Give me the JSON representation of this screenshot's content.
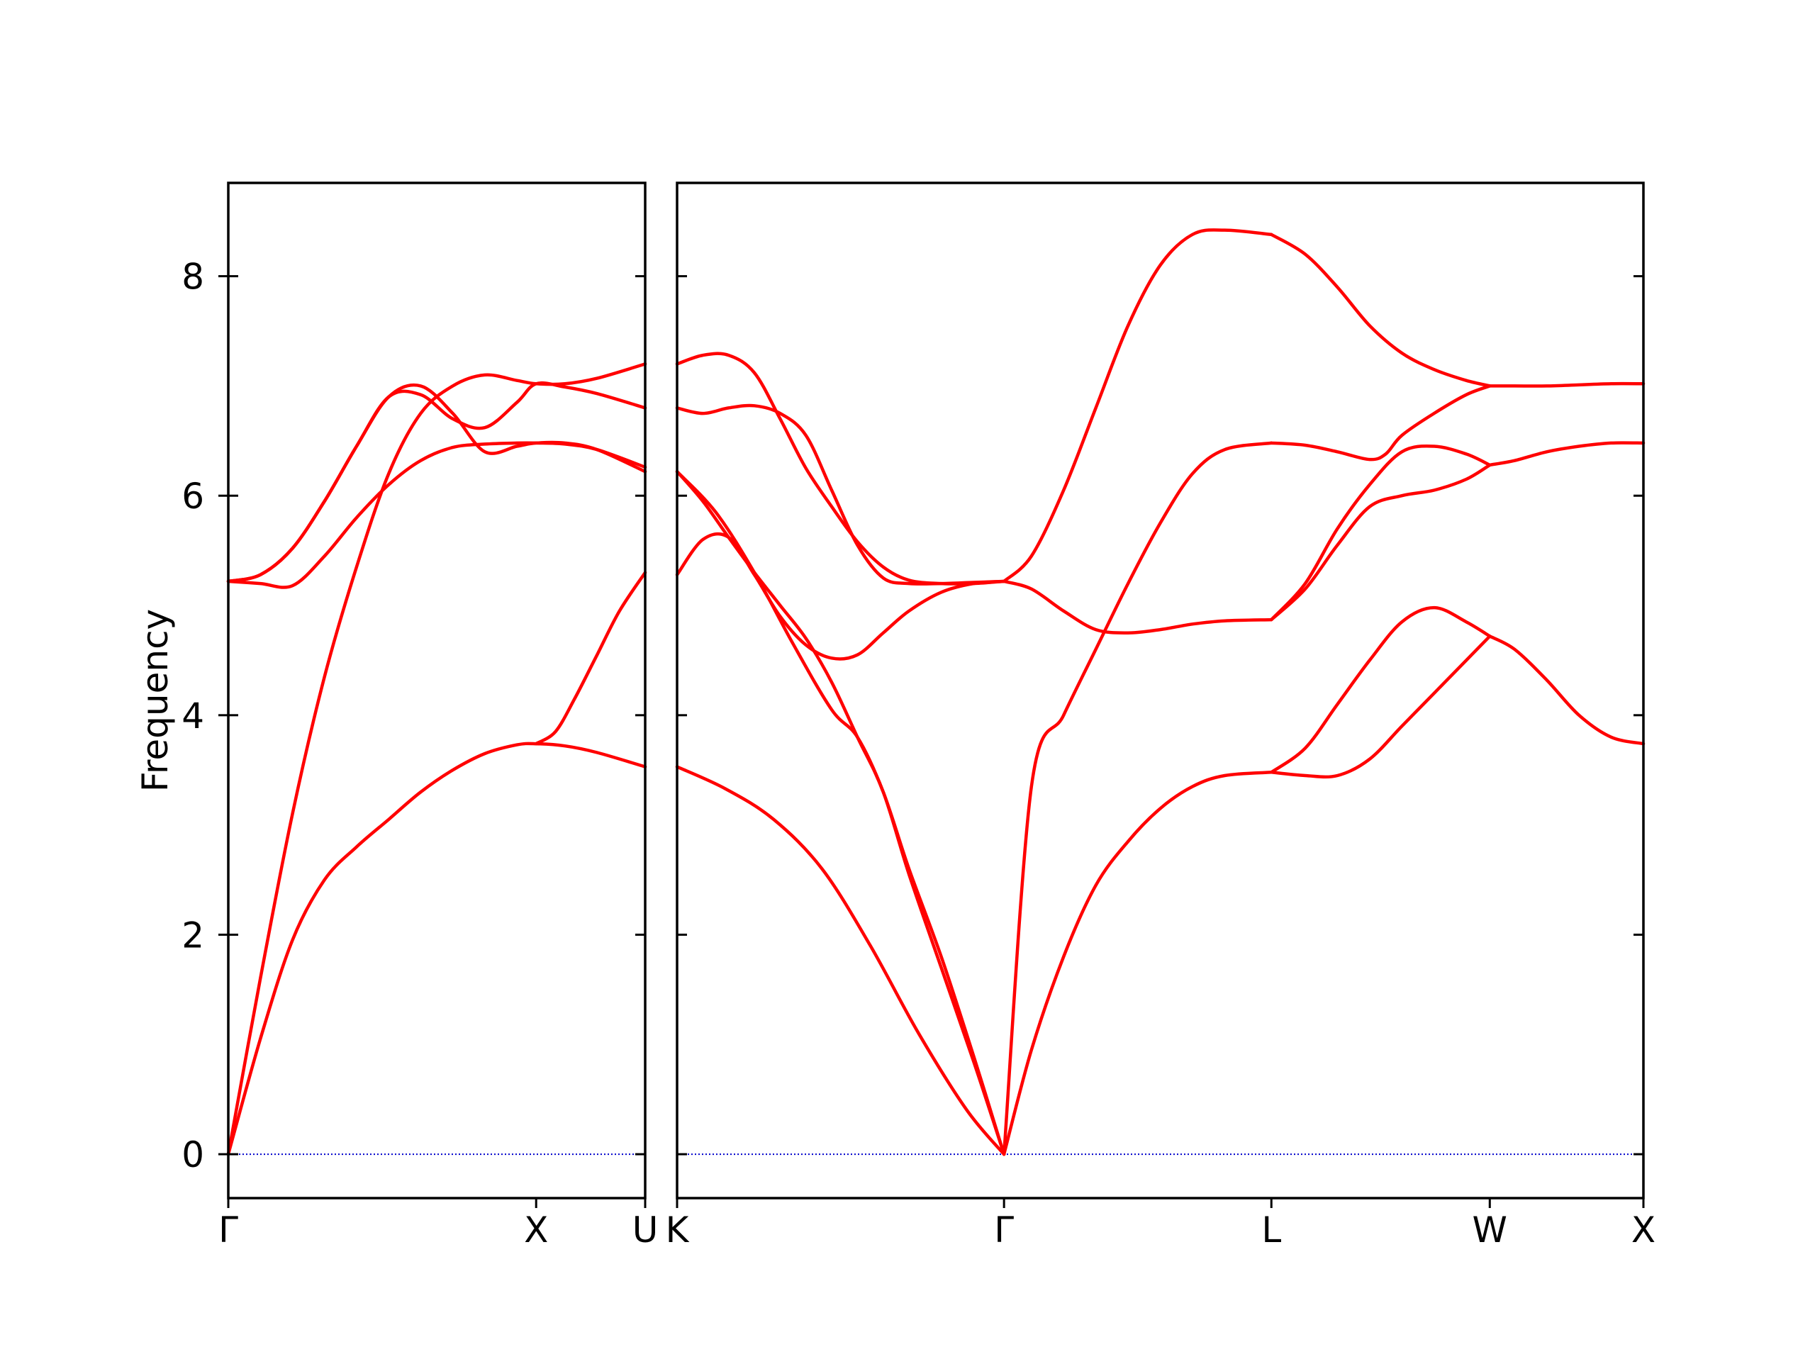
{
  "chart_data": {
    "type": "line",
    "ylabel": "Frequency",
    "ylim": [
      -0.4,
      8.85
    ],
    "yticks": [
      0,
      2,
      4,
      6,
      8
    ],
    "line_color": "#ff0000",
    "zero_line_color": "#0000cc",
    "panels": [
      {
        "xlim": [
          0,
          1.3
        ],
        "ticks": [
          {
            "x": 0,
            "label": "Γ"
          },
          {
            "x": 0.96,
            "label": "X"
          },
          {
            "x": 1.3,
            "label": "U"
          }
        ],
        "series": [
          {
            "x": [
              0,
              0.1,
              0.2,
              0.3,
              0.4,
              0.5,
              0.6,
              0.7,
              0.8,
              0.9,
              0.96,
              1.05,
              1.15,
              1.3
            ],
            "y": [
              0,
              1.05,
              1.95,
              2.5,
              2.8,
              3.05,
              3.3,
              3.5,
              3.65,
              3.73,
              3.74,
              3.72,
              3.66,
              3.53
            ]
          },
          {
            "x": [
              0,
              0.1,
              0.2,
              0.3,
              0.4,
              0.5,
              0.6,
              0.7,
              0.8,
              0.9,
              0.96,
              1.05,
              1.15,
              1.3
            ],
            "y": [
              0,
              1.6,
              3.1,
              4.35,
              5.35,
              6.2,
              6.75,
              7.0,
              7.1,
              7.05,
              7.02,
              7.02,
              7.07,
              7.2
            ]
          },
          {
            "x": [
              0,
              0.1,
              0.2,
              0.3,
              0.4,
              0.5,
              0.6,
              0.7,
              0.8,
              0.9,
              0.96,
              1.05,
              1.15,
              1.3
            ],
            "y": [
              5.22,
              5.2,
              5.18,
              5.45,
              5.8,
              6.1,
              6.32,
              6.44,
              6.47,
              6.48,
              6.48,
              6.47,
              6.42,
              6.26
            ]
          },
          {
            "x": [
              0,
              0.1,
              0.2,
              0.3,
              0.4,
              0.5,
              0.6,
              0.7,
              0.8,
              0.9,
              0.96,
              1.05,
              1.15,
              1.3
            ],
            "y": [
              5.22,
              5.28,
              5.52,
              5.95,
              6.45,
              6.9,
              6.92,
              6.7,
              6.62,
              6.85,
              7.02,
              6.99,
              6.93,
              6.8
            ]
          },
          {
            "x": [
              0,
              0.1,
              0.2,
              0.3,
              0.4,
              0.5,
              0.6,
              0.7,
              0.8,
              0.9,
              0.96,
              1.05,
              1.15,
              1.3
            ],
            "y": [
              5.22,
              5.28,
              5.52,
              5.95,
              6.45,
              6.9,
              7.0,
              6.75,
              6.4,
              6.45,
              6.48,
              6.48,
              6.42,
              6.22
            ]
          },
          {
            "x": [
              0.96,
              1.02,
              1.08,
              1.15,
              1.22,
              1.3
            ],
            "y": [
              3.74,
              3.85,
              4.15,
              4.55,
              4.95,
              5.3
            ]
          }
        ]
      },
      {
        "xlim": [
          0,
          3.0
        ],
        "ticks": [
          {
            "x": 0,
            "label": "K"
          },
          {
            "x": 1.015,
            "label": "Γ"
          },
          {
            "x": 1.845,
            "label": "L"
          },
          {
            "x": 2.523,
            "label": "W"
          },
          {
            "x": 3.0,
            "label": "X"
          }
        ],
        "series": [
          {
            "x": [
              0,
              0.15,
              0.3,
              0.45,
              0.6,
              0.75,
              0.9,
              1.015
            ],
            "y": [
              3.53,
              3.33,
              3.05,
              2.6,
              1.9,
              1.1,
              0.4,
              0
            ]
          },
          {
            "x": [
              0,
              0.12,
              0.24,
              0.36,
              0.48,
              0.56,
              0.64,
              0.72,
              0.82,
              0.92,
              1.015
            ],
            "y": [
              6.22,
              5.85,
              5.3,
              4.65,
              4.05,
              3.8,
              3.3,
              2.6,
              1.8,
              0.9,
              0
            ]
          },
          {
            "x": [
              0,
              0.08,
              0.16,
              0.24,
              0.32,
              0.4,
              0.48,
              0.56,
              0.64,
              0.72,
              0.82,
              0.92,
              1.015
            ],
            "y": [
              6.22,
              5.95,
              5.62,
              5.3,
              5.0,
              4.7,
              4.3,
              3.8,
              3.3,
              2.55,
              1.7,
              0.85,
              0
            ]
          },
          {
            "x": [
              0,
              0.08,
              0.16,
              0.24,
              0.32,
              0.4,
              0.48,
              0.56,
              0.64,
              0.72,
              0.82,
              0.92,
              1.015
            ],
            "y": [
              5.28,
              5.6,
              5.62,
              5.28,
              4.9,
              4.64,
              4.52,
              4.55,
              4.75,
              4.95,
              5.12,
              5.2,
              5.22
            ]
          },
          {
            "x": [
              0,
              0.08,
              0.16,
              0.24,
              0.32,
              0.4,
              0.48,
              0.56,
              0.64,
              0.72,
              0.82,
              0.92,
              1.015
            ],
            "y": [
              6.8,
              6.75,
              6.8,
              6.82,
              6.75,
              6.55,
              6.05,
              5.55,
              5.25,
              5.2,
              5.2,
              5.21,
              5.22
            ]
          },
          {
            "x": [
              0,
              0.08,
              0.16,
              0.24,
              0.32,
              0.4,
              0.48,
              0.56,
              0.64,
              0.72,
              0.82,
              0.92,
              1.015
            ],
            "y": [
              7.2,
              7.28,
              7.28,
              7.12,
              6.7,
              6.25,
              5.9,
              5.58,
              5.35,
              5.23,
              5.2,
              5.2,
              5.22
            ]
          },
          {
            "x": [
              1.015,
              1.1,
              1.2,
              1.3,
              1.4,
              1.5,
              1.6,
              1.7,
              1.845
            ],
            "y": [
              0,
              3.35,
              4.0,
              4.6,
              5.2,
              5.75,
              6.2,
              6.42,
              6.48
            ]
          },
          {
            "x": [
              1.015,
              1.1,
              1.2,
              1.3,
              1.4,
              1.5,
              1.6,
              1.7,
              1.845
            ],
            "y": [
              0,
              0.95,
              1.8,
              2.45,
              2.85,
              3.15,
              3.35,
              3.45,
              3.48
            ]
          },
          {
            "x": [
              1.015,
              1.1,
              1.2,
              1.3,
              1.4,
              1.5,
              1.6,
              1.7,
              1.845
            ],
            "y": [
              5.22,
              5.15,
              4.95,
              4.78,
              4.75,
              4.78,
              4.83,
              4.86,
              4.87
            ]
          },
          {
            "x": [
              1.015,
              1.1,
              1.2,
              1.3,
              1.4,
              1.5,
              1.6,
              1.7,
              1.845
            ],
            "y": [
              5.22,
              5.45,
              6.05,
              6.8,
              7.55,
              8.1,
              8.38,
              8.42,
              8.38
            ]
          },
          {
            "x": [
              1.845,
              1.95,
              2.05,
              2.15,
              2.25,
              2.35,
              2.45,
              2.523
            ],
            "y": [
              8.38,
              8.2,
              7.9,
              7.55,
              7.3,
              7.15,
              7.05,
              7.0
            ]
          },
          {
            "x": [
              1.845,
              1.95,
              2.05,
              2.15,
              2.2,
              2.25,
              2.35,
              2.45,
              2.523
            ],
            "y": [
              6.48,
              6.46,
              6.4,
              6.33,
              6.38,
              6.55,
              6.75,
              6.92,
              7.0
            ]
          },
          {
            "x": [
              1.845,
              1.95,
              2.05,
              2.15,
              2.25,
              2.35,
              2.45,
              2.523
            ],
            "y": [
              4.87,
              5.2,
              5.7,
              6.1,
              6.4,
              6.45,
              6.38,
              6.28
            ]
          },
          {
            "x": [
              1.845,
              1.95,
              2.05,
              2.15,
              2.25,
              2.35,
              2.45,
              2.523
            ],
            "y": [
              4.87,
              5.15,
              5.55,
              5.9,
              6.0,
              6.05,
              6.15,
              6.28
            ]
          },
          {
            "x": [
              1.845,
              1.95,
              2.05,
              2.15,
              2.25,
              2.35,
              2.45,
              2.523
            ],
            "y": [
              3.48,
              3.7,
              4.1,
              4.5,
              4.85,
              4.98,
              4.85,
              4.72
            ]
          },
          {
            "x": [
              1.845,
              1.95,
              2.05,
              2.15,
              2.25,
              2.35,
              2.45,
              2.523
            ],
            "y": [
              3.48,
              3.45,
              3.45,
              3.6,
              3.9,
              4.2,
              4.5,
              4.72
            ]
          },
          {
            "x": [
              2.523,
              2.6,
              2.7,
              2.8,
              2.9,
              3.0
            ],
            "y": [
              7.0,
              7.0,
              7.0,
              7.01,
              7.02,
              7.02
            ]
          },
          {
            "x": [
              2.523,
              2.6,
              2.7,
              2.8,
              2.9,
              3.0
            ],
            "y": [
              6.28,
              6.32,
              6.4,
              6.45,
              6.48,
              6.48
            ]
          },
          {
            "x": [
              2.523,
              2.6,
              2.7,
              2.8,
              2.9,
              3.0
            ],
            "y": [
              4.72,
              4.6,
              4.32,
              4.0,
              3.8,
              3.74
            ]
          }
        ]
      }
    ]
  }
}
